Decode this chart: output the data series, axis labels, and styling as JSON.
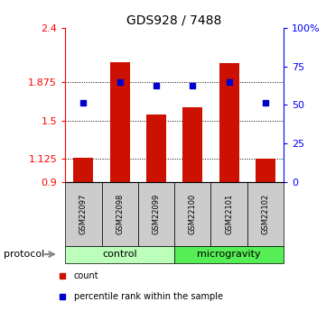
{
  "title": "GDS928 / 7488",
  "samples": [
    "GSM22097",
    "GSM22098",
    "GSM22099",
    "GSM22100",
    "GSM22101",
    "GSM22102"
  ],
  "bar_heights": [
    1.14,
    2.07,
    1.56,
    1.63,
    2.06,
    1.13
  ],
  "blue_y": [
    1.67,
    1.875,
    1.84,
    1.84,
    1.875,
    1.67
  ],
  "bar_color": "#cc1100",
  "blue_color": "#0000cc",
  "ylim": [
    0.9,
    2.4
  ],
  "yticks_left": [
    0.9,
    1.125,
    1.5,
    1.875,
    2.4
  ],
  "yticks_right_pct": [
    0,
    25,
    50,
    75,
    100
  ],
  "y_right_labels": [
    "0",
    "25",
    "50",
    "75",
    "100%"
  ],
  "dotted_lines": [
    1.125,
    1.5,
    1.875
  ],
  "protocol_groups": [
    {
      "label": "control",
      "indices": [
        0,
        1,
        2
      ],
      "color": "#bbffbb"
    },
    {
      "label": "microgravity",
      "indices": [
        3,
        4,
        5
      ],
      "color": "#55ee55"
    }
  ],
  "protocol_label": "protocol",
  "legend_items": [
    {
      "label": "count",
      "color": "#cc1100"
    },
    {
      "label": "percentile rank within the sample",
      "color": "#0000cc"
    }
  ],
  "sample_box_color": "#cccccc",
  "title_fontsize": 10,
  "tick_fontsize": 8,
  "label_fontsize": 6,
  "bar_width": 0.55
}
